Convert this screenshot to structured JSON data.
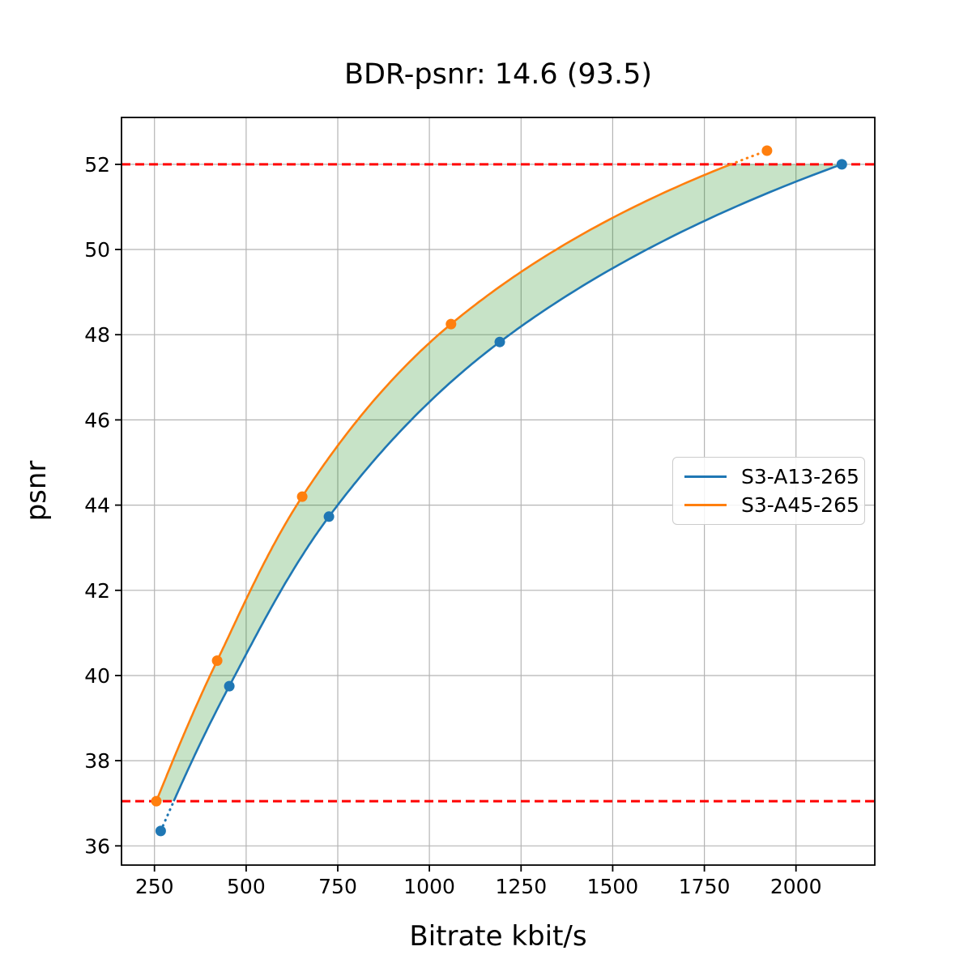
{
  "chart_data": {
    "type": "line",
    "title": "BDR-psnr: 14.6 (93.5)",
    "xlabel": "Bitrate kbit/s",
    "ylabel": "psnr",
    "xlim": [
      160,
      2215
    ],
    "ylim": [
      35.55,
      53.1
    ],
    "xticks": [
      250,
      500,
      750,
      1000,
      1250,
      1500,
      1750,
      2000
    ],
    "yticks": [
      36,
      38,
      40,
      42,
      44,
      46,
      48,
      50,
      52
    ],
    "grid": true,
    "grid_color": "#b4b4b4",
    "legend_position": "center right",
    "series": [
      {
        "name": "S3-A13-265",
        "color": "#1f77b4",
        "x": [
          267,
          454,
          726,
          1192,
          2125
        ],
        "y": [
          36.35,
          39.75,
          43.73,
          47.83,
          52.0
        ]
      },
      {
        "name": "S3-A45-265",
        "color": "#ff7f0e",
        "x": [
          255,
          421,
          653,
          1059,
          1921
        ],
        "y": [
          37.05,
          40.35,
          44.2,
          48.25,
          52.32
        ]
      }
    ],
    "hlines": {
      "values": [
        52.0,
        37.05
      ],
      "color": "#ff0000",
      "style": "dashed"
    },
    "overlap_fill": {
      "color": "#008000",
      "opacity": 0.22,
      "psnr_range": [
        37.05,
        52.0
      ]
    },
    "curve_style": {
      "solid_inside_overlap": true,
      "dotted_outside_overlap": true
    }
  },
  "legend": {
    "items": [
      {
        "label": "S3-A13-265",
        "color": "#1f77b4"
      },
      {
        "label": "S3-A45-265",
        "color": "#ff7f0e"
      }
    ]
  }
}
